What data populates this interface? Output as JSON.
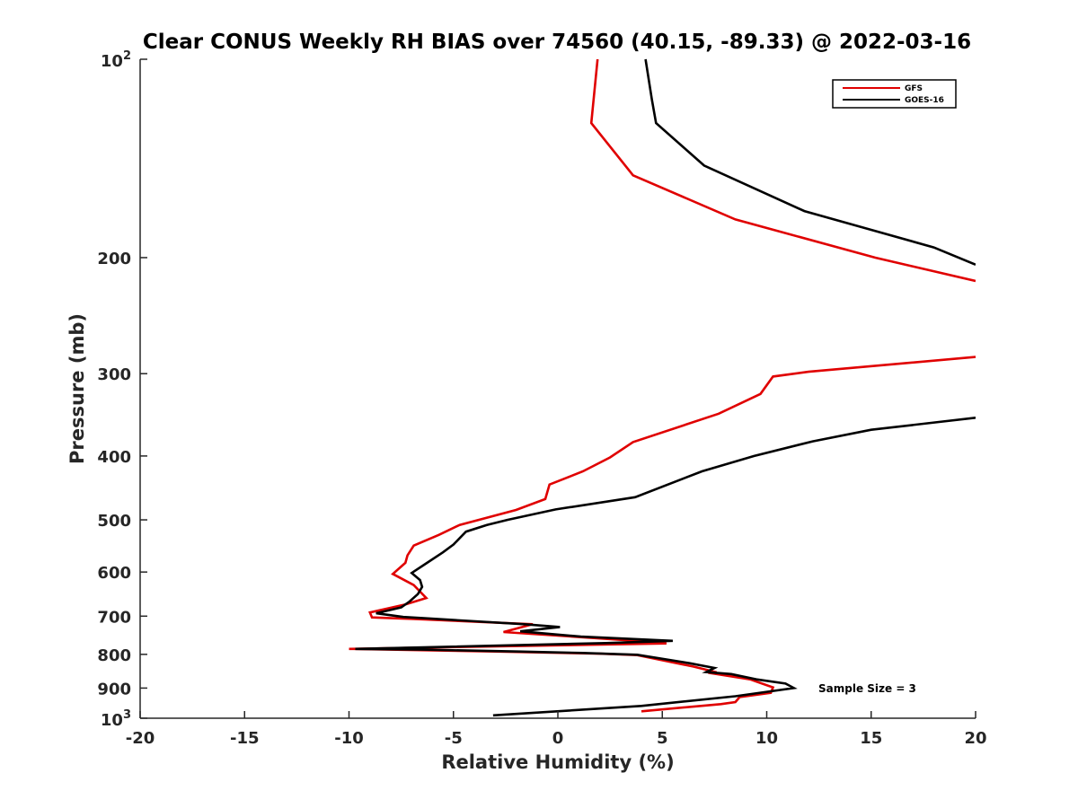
{
  "chart_data": {
    "type": "line",
    "title": "Clear CONUS Weekly RH BIAS over 74560 (40.15, -89.33) @ 2022-03-16",
    "xlabel": "Relative Humidity (%)",
    "ylabel": "Pressure (mb)",
    "xlim": [
      -20,
      20
    ],
    "ylim": [
      100,
      1000
    ],
    "y_scale": "log",
    "y_reversed": true,
    "grid": false,
    "legend_position": "top-right",
    "x_ticks": [
      "-20",
      "-15",
      "-10",
      "-5",
      "0",
      "5",
      "10",
      "15",
      "20"
    ],
    "y_ticks": [
      {
        "value": 100,
        "base": "10",
        "exp": "2"
      },
      {
        "value": 200,
        "label": "200"
      },
      {
        "value": 300,
        "label": "300"
      },
      {
        "value": 400,
        "label": "400"
      },
      {
        "value": 500,
        "label": "500"
      },
      {
        "value": 600,
        "label": "600"
      },
      {
        "value": 700,
        "label": "700"
      },
      {
        "value": 800,
        "label": "800"
      },
      {
        "value": 900,
        "label": "900"
      },
      {
        "value": 1000,
        "base": "10",
        "exp": "3"
      }
    ],
    "annotation": "Sample Size = 3",
    "series": [
      {
        "name": "GFS",
        "color": "#e00000",
        "points": [
          [
            1.9,
            100
          ],
          [
            1.6,
            125
          ],
          [
            3.6,
            150
          ],
          [
            8.5,
            175
          ],
          [
            15.2,
            200
          ],
          [
            20.0,
            217
          ],
          [
            null,
            null
          ],
          [
            20.0,
            283
          ],
          [
            12.0,
            298
          ],
          [
            10.3,
            303
          ],
          [
            9.7,
            322
          ],
          [
            7.7,
            345
          ],
          [
            3.6,
            381
          ],
          [
            2.5,
            402
          ],
          [
            1.2,
            422
          ],
          [
            -0.4,
            442
          ],
          [
            -0.6,
            465
          ],
          [
            -2.0,
            483
          ],
          [
            -4.7,
            509
          ],
          [
            -5.7,
            527
          ],
          [
            -6.9,
            547
          ],
          [
            -7.2,
            566
          ],
          [
            -7.3,
            581
          ],
          [
            -7.9,
            604
          ],
          [
            -6.9,
            628
          ],
          [
            -6.3,
            657
          ],
          [
            -7.3,
            672
          ],
          [
            -9.0,
            691
          ],
          [
            -8.9,
            703
          ],
          [
            -6.9,
            707
          ],
          [
            -1.2,
            720
          ],
          [
            -2.6,
            740
          ],
          [
            3.5,
            762
          ],
          [
            5.2,
            770
          ],
          [
            -10.0,
            785
          ],
          [
            -9.8,
            785
          ],
          [
            -3.0,
            792
          ],
          [
            2.0,
            798
          ],
          [
            3.8,
            802
          ],
          [
            6.5,
            835
          ],
          [
            7.6,
            852
          ],
          [
            7.2,
            853
          ],
          [
            9.2,
            873
          ],
          [
            10.3,
            898
          ],
          [
            10.2,
            915
          ],
          [
            8.7,
            929
          ],
          [
            8.5,
            945
          ],
          [
            7.8,
            952
          ],
          [
            4.0,
            976
          ]
        ]
      },
      {
        "name": "GOES-16",
        "color": "#000000",
        "points": [
          [
            4.2,
            100
          ],
          [
            4.5,
            115
          ],
          [
            4.7,
            125
          ],
          [
            7.0,
            145
          ],
          [
            11.8,
            170
          ],
          [
            18.0,
            193
          ],
          [
            20.0,
            205
          ],
          [
            null,
            null
          ],
          [
            20.0,
            350
          ],
          [
            15.0,
            365
          ],
          [
            12.2,
            380
          ],
          [
            9.4,
            400
          ],
          [
            6.9,
            422
          ],
          [
            3.7,
            462
          ],
          [
            -0.1,
            482
          ],
          [
            -2.4,
            500
          ],
          [
            -3.4,
            509
          ],
          [
            -4.4,
            521
          ],
          [
            -5.0,
            545
          ],
          [
            -5.5,
            560
          ],
          [
            -6.3,
            582
          ],
          [
            -7.0,
            602
          ],
          [
            -6.6,
            617
          ],
          [
            -6.5,
            632
          ],
          [
            -6.7,
            648
          ],
          [
            -7.1,
            665
          ],
          [
            -7.5,
            679
          ],
          [
            -8.7,
            693
          ],
          [
            -7.4,
            702
          ],
          [
            -6.4,
            705
          ],
          [
            -1.6,
            720
          ],
          [
            0.1,
            727
          ],
          [
            -1.8,
            738
          ],
          [
            1.1,
            752
          ],
          [
            5.5,
            763
          ],
          [
            2.3,
            769
          ],
          [
            -9.7,
            785
          ],
          [
            -6.5,
            787
          ],
          [
            -1.9,
            792
          ],
          [
            1.2,
            796
          ],
          [
            3.8,
            801
          ],
          [
            6.3,
            825
          ],
          [
            7.5,
            839
          ],
          [
            7.1,
            851
          ],
          [
            8.3,
            857
          ],
          [
            9.5,
            873
          ],
          [
            10.9,
            886
          ],
          [
            11.3,
            900
          ],
          [
            8.5,
            926
          ],
          [
            4.0,
            958
          ],
          [
            -3.1,
            990
          ]
        ]
      }
    ]
  }
}
